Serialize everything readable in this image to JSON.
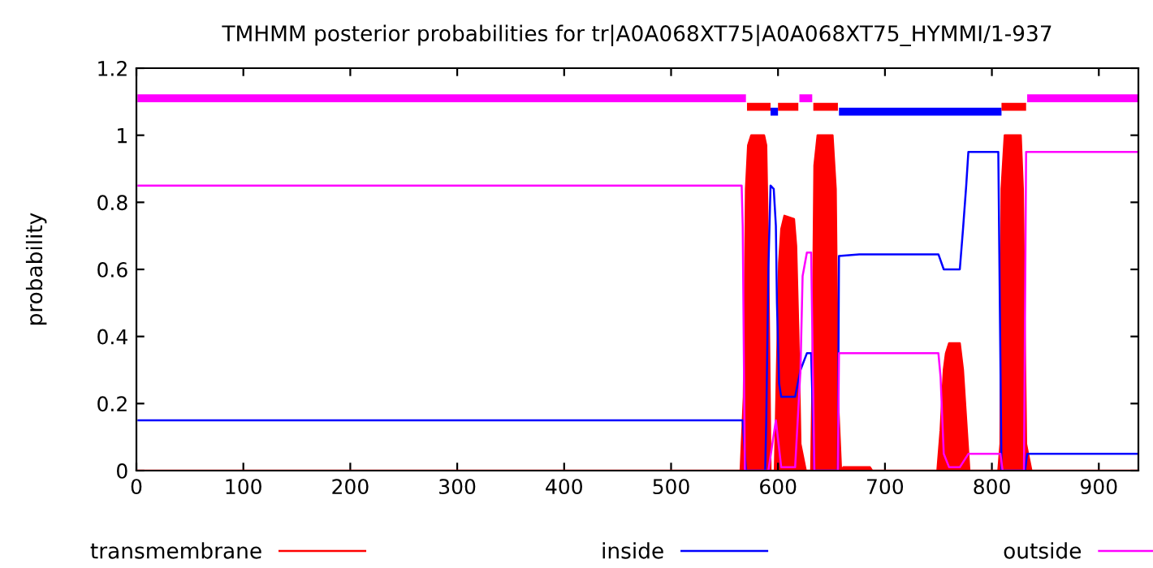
{
  "chart_data": {
    "type": "line",
    "title": "TMHMM posterior probabilities for tr|A0A068XT75|A0A068XT75_HYMMI/1-937",
    "ylabel": "probability",
    "xlim": [
      0,
      937
    ],
    "ylim": [
      0,
      1.2
    ],
    "xticks": [
      0,
      100,
      200,
      300,
      400,
      500,
      600,
      700,
      800,
      900
    ],
    "yticks": [
      0,
      0.2,
      0.4,
      0.6,
      0.8,
      1,
      1.2
    ],
    "grid": false,
    "legend": "bottom",
    "marker": "none",
    "line_style": "solid",
    "series": [
      {
        "name": "transmembrane",
        "type": "area",
        "color": "#ff0000",
        "x": [
          0,
          565,
          568,
          570,
          572,
          575,
          587,
          589,
          591,
          593,
          597,
          598,
          601,
          603,
          606,
          615,
          617,
          619,
          621,
          626,
          631,
          632,
          634,
          637,
          651,
          654,
          656,
          659,
          661,
          686,
          688,
          749,
          752,
          755,
          757,
          760,
          770,
          773,
          776,
          779,
          806,
          808,
          809,
          812,
          827,
          829,
          832,
          837,
          937
        ],
        "values": [
          0,
          0,
          0.22,
          0.84,
          0.97,
          1.0,
          1.0,
          0.97,
          0.6,
          0,
          0,
          0.15,
          0.62,
          0.72,
          0.76,
          0.75,
          0.67,
          0.42,
          0.08,
          0,
          0,
          0.22,
          0.91,
          1.0,
          1.0,
          0.84,
          0.22,
          0,
          0.01,
          0.01,
          0,
          0,
          0.12,
          0.3,
          0.35,
          0.38,
          0.38,
          0.3,
          0.15,
          0,
          0,
          0.08,
          0.84,
          1.0,
          1.0,
          0.84,
          0.08,
          0,
          0
        ]
      },
      {
        "name": "inside",
        "color": "#0000ff",
        "x": [
          1,
          567,
          570,
          588,
          589,
          591,
          593,
          596,
          598,
          599,
          601,
          603,
          616,
          621,
          627,
          631,
          634,
          656,
          657,
          676,
          750,
          755,
          770,
          773,
          776,
          778,
          806,
          809,
          831,
          833,
          937
        ],
        "values": [
          0.15,
          0.15,
          0,
          0,
          0.15,
          0.6,
          0.85,
          0.84,
          0.73,
          0.5,
          0.26,
          0.22,
          0.22,
          0.3,
          0.35,
          0.35,
          0,
          0,
          0.64,
          0.645,
          0.645,
          0.6,
          0.6,
          0.72,
          0.85,
          0.95,
          0.95,
          0,
          0,
          0.05,
          0.05
        ]
      },
      {
        "name": "outside",
        "color": "#ff00ff",
        "x": [
          1,
          566,
          567,
          569,
          591,
          598,
          603,
          616,
          621,
          623,
          627,
          631,
          634,
          656,
          657,
          750,
          752,
          755,
          760,
          770,
          778,
          808,
          810,
          830,
          832,
          937
        ],
        "values": [
          0.85,
          0.85,
          0.73,
          0,
          0,
          0.15,
          0.01,
          0.01,
          0.3,
          0.58,
          0.65,
          0.65,
          0,
          0,
          0.35,
          0.35,
          0.28,
          0.05,
          0.01,
          0.01,
          0.05,
          0.05,
          0,
          0,
          0.95,
          0.95
        ]
      },
      {
        "color": "#ff00ff",
        "x": [
          1,
          570,
          571,
          619,
          620,
          632,
          633,
          832,
          833,
          937
        ],
        "values": [
          1.11,
          1.11,
          null,
          null,
          1.11,
          1.11,
          null,
          null,
          1.11,
          1.11
        ]
      },
      {
        "color": "#0000ff",
        "x": [
          593,
          600,
          601,
          656,
          657,
          809
        ],
        "values": [
          1.07,
          1.07,
          null,
          null,
          1.07,
          1.07
        ]
      },
      {
        "color": "#ff0000",
        "x": [
          571,
          593,
          594,
          600,
          619,
          620,
          633,
          656,
          657,
          809,
          832
        ],
        "values": [
          1.085,
          1.085,
          null,
          1.085,
          1.085,
          null,
          1.085,
          1.085,
          null,
          1.085,
          1.085
        ]
      }
    ]
  }
}
